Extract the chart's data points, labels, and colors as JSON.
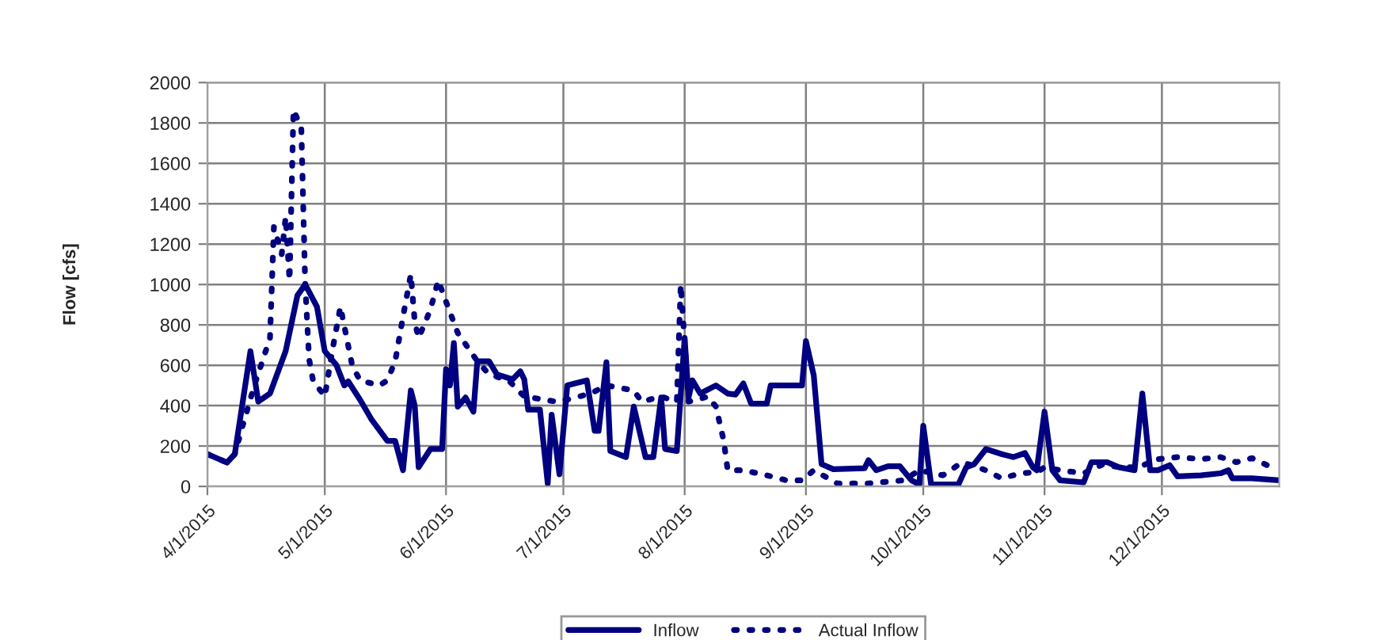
{
  "chart_data": {
    "type": "line",
    "ylabel": "Flow [cfs]",
    "xlim": [
      "2015-04-01",
      "2015-12-31"
    ],
    "ylim": [
      0,
      2000
    ],
    "xticks": [
      {
        "value": "2015-04-01",
        "label": "4/1/2015"
      },
      {
        "value": "2015-05-01",
        "label": "5/1/2015"
      },
      {
        "value": "2015-06-01",
        "label": "6/1/2015"
      },
      {
        "value": "2015-07-01",
        "label": "7/1/2015"
      },
      {
        "value": "2015-08-01",
        "label": "8/1/2015"
      },
      {
        "value": "2015-09-01",
        "label": "9/1/2015"
      },
      {
        "value": "2015-10-01",
        "label": "10/1/2015"
      },
      {
        "value": "2015-11-01",
        "label": "11/1/2015"
      },
      {
        "value": "2015-12-01",
        "label": "12/1/2015"
      }
    ],
    "yticks": [
      0,
      200,
      400,
      600,
      800,
      1000,
      1200,
      1400,
      1600,
      1800,
      2000
    ],
    "grid": true,
    "legend": "bottom",
    "marker": "none",
    "series": [
      {
        "name": "Inflow",
        "color": "#000080",
        "line_style": "solid",
        "x": [
          "2015-04-01",
          "2015-04-06",
          "2015-04-08",
          "2015-04-12",
          "2015-04-14",
          "2015-04-17",
          "2015-04-21",
          "2015-04-24",
          "2015-04-26",
          "2015-04-29",
          "2015-05-01",
          "2015-05-04",
          "2015-05-06",
          "2015-05-07",
          "2015-05-10",
          "2015-05-13",
          "2015-05-17",
          "2015-05-19",
          "2015-05-21",
          "2015-05-23",
          "2015-05-24",
          "2015-05-25",
          "2015-05-28",
          "2015-05-31",
          "2015-06-01",
          "2015-06-02",
          "2015-06-03",
          "2015-06-04",
          "2015-06-06",
          "2015-06-08",
          "2015-06-09",
          "2015-06-12",
          "2015-06-14",
          "2015-06-18",
          "2015-06-20",
          "2015-06-21",
          "2015-06-22",
          "2015-06-25",
          "2015-06-27",
          "2015-06-28",
          "2015-06-30",
          "2015-07-02",
          "2015-07-07",
          "2015-07-09",
          "2015-07-10",
          "2015-07-12",
          "2015-07-13",
          "2015-07-17",
          "2015-07-19",
          "2015-07-22",
          "2015-07-24",
          "2015-07-26",
          "2015-07-27",
          "2015-07-30",
          "2015-08-01",
          "2015-08-02",
          "2015-08-03",
          "2015-08-05",
          "2015-08-09",
          "2015-08-12",
          "2015-08-14",
          "2015-08-16",
          "2015-08-18",
          "2015-08-22",
          "2015-08-23",
          "2015-08-31",
          "2015-09-01",
          "2015-09-03",
          "2015-09-05",
          "2015-09-08",
          "2015-09-16",
          "2015-09-17",
          "2015-09-19",
          "2015-09-22",
          "2015-09-25",
          "2015-09-28",
          "2015-09-30",
          "2015-10-01",
          "2015-10-03",
          "2015-10-10",
          "2015-10-12",
          "2015-10-14",
          "2015-10-17",
          "2015-10-21",
          "2015-10-24",
          "2015-10-27",
          "2015-10-29",
          "2015-10-30",
          "2015-11-01",
          "2015-11-03",
          "2015-11-05",
          "2015-11-11",
          "2015-11-13",
          "2015-11-17",
          "2015-11-20",
          "2015-11-24",
          "2015-11-26",
          "2015-11-28",
          "2015-11-30",
          "2015-12-03",
          "2015-12-05",
          "2015-12-11",
          "2015-12-16",
          "2015-12-18",
          "2015-12-19",
          "2015-12-24",
          "2015-12-31"
        ],
        "values": [
          160,
          118,
          160,
          670,
          420,
          460,
          670,
          945,
          1000,
          890,
          670,
          600,
          500,
          520,
          430,
          330,
          225,
          225,
          80,
          475,
          400,
          95,
          185,
          185,
          580,
          500,
          710,
          395,
          440,
          370,
          620,
          620,
          555,
          530,
          570,
          530,
          380,
          380,
          15,
          355,
          60,
          500,
          525,
          275,
          275,
          615,
          175,
          145,
          395,
          145,
          145,
          440,
          185,
          175,
          735,
          440,
          525,
          460,
          500,
          460,
          455,
          510,
          410,
          410,
          500,
          500,
          720,
          550,
          110,
          85,
          90,
          130,
          80,
          100,
          100,
          30,
          10,
          300,
          10,
          10,
          95,
          110,
          185,
          160,
          145,
          165,
          95,
          80,
          370,
          80,
          30,
          20,
          120,
          120,
          95,
          80,
          460,
          80,
          80,
          105,
          50,
          55,
          65,
          80,
          40,
          40,
          30
        ]
      },
      {
        "name": "Actual Inflow",
        "color": "#000080",
        "line_style": "dotted",
        "x": [
          "2015-04-01",
          "2015-04-06",
          "2015-04-08",
          "2015-04-10",
          "2015-04-13",
          "2015-04-17",
          "2015-04-18",
          "2015-04-20",
          "2015-04-21",
          "2015-04-22",
          "2015-04-23",
          "2015-04-24",
          "2015-04-25",
          "2015-04-26",
          "2015-04-27",
          "2015-04-28",
          "2015-05-01",
          "2015-05-03",
          "2015-05-05",
          "2015-05-08",
          "2015-05-10",
          "2015-05-15",
          "2015-05-17",
          "2015-05-19",
          "2015-05-21",
          "2015-05-23",
          "2015-05-24",
          "2015-05-25",
          "2015-05-28",
          "2015-05-30",
          "2015-06-01",
          "2015-06-04",
          "2015-06-09",
          "2015-06-12",
          "2015-06-17",
          "2015-06-21",
          "2015-06-26",
          "2015-06-29",
          "2015-07-02",
          "2015-07-08",
          "2015-07-12",
          "2015-07-19",
          "2015-07-21",
          "2015-07-26",
          "2015-07-30",
          "2015-07-31",
          "2015-08-02",
          "2015-08-07",
          "2015-08-09",
          "2015-08-11",
          "2015-08-12",
          "2015-08-16",
          "2015-08-22",
          "2015-08-27",
          "2015-08-31",
          "2015-09-03",
          "2015-09-09",
          "2015-09-17",
          "2015-09-26",
          "2015-09-30",
          "2015-10-06",
          "2015-10-11",
          "2015-10-17",
          "2015-10-21",
          "2015-10-26",
          "2015-10-30",
          "2015-11-01",
          "2015-11-05",
          "2015-11-11",
          "2015-11-16",
          "2015-11-20",
          "2015-11-25",
          "2015-11-30",
          "2015-12-05",
          "2015-12-11",
          "2015-12-16",
          "2015-12-20",
          "2015-12-24",
          "2015-12-29"
        ],
        "values": [
          160,
          118,
          160,
          300,
          500,
          735,
          1285,
          1150,
          1335,
          1020,
          1865,
          1820,
          1780,
          1000,
          630,
          525,
          445,
          680,
          890,
          600,
          525,
          500,
          525,
          620,
          840,
          1050,
          815,
          735,
          875,
          1020,
          915,
          760,
          620,
          555,
          525,
          445,
          430,
          420,
          430,
          460,
          500,
          475,
          420,
          445,
          420,
          1000,
          420,
          445,
          395,
          225,
          80,
          80,
          55,
          30,
          30,
          80,
          15,
          15,
          30,
          80,
          55,
          120,
          80,
          40,
          65,
          70,
          95,
          80,
          65,
          110,
          95,
          95,
          135,
          145,
          135,
          145,
          120,
          140,
          95
        ]
      }
    ]
  }
}
